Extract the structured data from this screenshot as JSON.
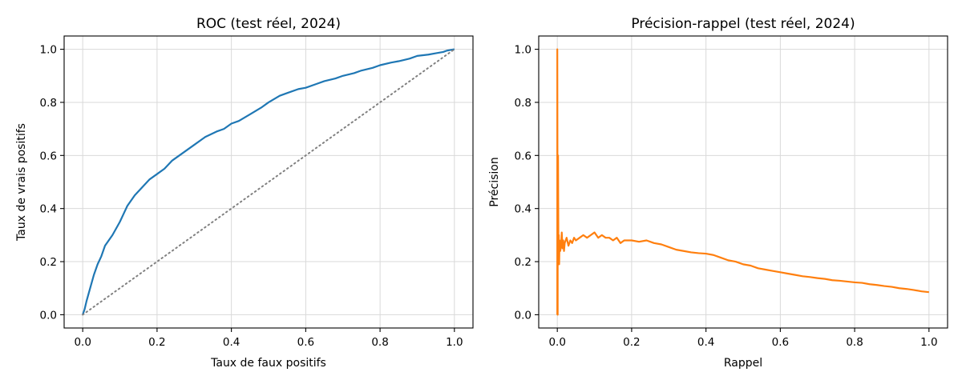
{
  "figure": {
    "background": "#ffffff",
    "grid_color": "#d9d9d9"
  },
  "chart_data": [
    {
      "type": "line",
      "title": "ROC (test réel, 2024)",
      "xlabel": "Taux de faux positifs",
      "ylabel": "Taux de vrais positifs",
      "xlim": [
        -0.05,
        1.05
      ],
      "ylim": [
        -0.05,
        1.05
      ],
      "xticks": [
        0.0,
        0.2,
        0.4,
        0.6,
        0.8,
        1.0
      ],
      "yticks": [
        0.0,
        0.2,
        0.4,
        0.6,
        0.8,
        1.0
      ],
      "xtick_labels": [
        "0.0",
        "0.2",
        "0.4",
        "0.6",
        "0.8",
        "1.0"
      ],
      "ytick_labels": [
        "0.0",
        "0.2",
        "0.4",
        "0.6",
        "0.8",
        "1.0"
      ],
      "grid": true,
      "series": [
        {
          "color": "#1f77b4",
          "style": "solid",
          "x": [
            0.0,
            0.005,
            0.01,
            0.02,
            0.03,
            0.04,
            0.05,
            0.06,
            0.08,
            0.1,
            0.11,
            0.12,
            0.13,
            0.14,
            0.16,
            0.18,
            0.2,
            0.22,
            0.24,
            0.26,
            0.28,
            0.3,
            0.33,
            0.36,
            0.38,
            0.4,
            0.42,
            0.45,
            0.48,
            0.5,
            0.53,
            0.55,
            0.58,
            0.6,
            0.63,
            0.65,
            0.68,
            0.7,
            0.73,
            0.75,
            0.78,
            0.8,
            0.83,
            0.85,
            0.88,
            0.9,
            0.93,
            0.95,
            0.97,
            0.98,
            1.0
          ],
          "y": [
            0.0,
            0.02,
            0.05,
            0.1,
            0.15,
            0.19,
            0.22,
            0.26,
            0.3,
            0.35,
            0.38,
            0.41,
            0.43,
            0.45,
            0.48,
            0.51,
            0.53,
            0.55,
            0.58,
            0.6,
            0.62,
            0.64,
            0.67,
            0.69,
            0.7,
            0.72,
            0.73,
            0.755,
            0.78,
            0.8,
            0.825,
            0.835,
            0.85,
            0.855,
            0.87,
            0.88,
            0.89,
            0.9,
            0.91,
            0.92,
            0.93,
            0.94,
            0.95,
            0.955,
            0.965,
            0.975,
            0.98,
            0.985,
            0.99,
            0.995,
            1.0
          ]
        },
        {
          "color": "#808080",
          "style": "dotted",
          "x": [
            0.0,
            1.0
          ],
          "y": [
            0.0,
            1.0
          ]
        }
      ]
    },
    {
      "type": "line",
      "title": "Précision-rappel (test réel, 2024)",
      "xlabel": "Rappel",
      "ylabel": "Précision",
      "xlim": [
        -0.05,
        1.05
      ],
      "ylim": [
        -0.05,
        1.05
      ],
      "xticks": [
        0.0,
        0.2,
        0.4,
        0.6,
        0.8,
        1.0
      ],
      "yticks": [
        0.0,
        0.2,
        0.4,
        0.6,
        0.8,
        1.0
      ],
      "xtick_labels": [
        "0.0",
        "0.2",
        "0.4",
        "0.6",
        "0.8",
        "1.0"
      ],
      "ytick_labels": [
        "0.0",
        "0.2",
        "0.4",
        "0.6",
        "0.8",
        "1.0"
      ],
      "grid": true,
      "series": [
        {
          "color": "#ff7f0e",
          "style": "solid",
          "x": [
            0.0,
            0.0,
            0.001,
            0.001,
            0.002,
            0.002,
            0.003,
            0.004,
            0.005,
            0.006,
            0.008,
            0.01,
            0.012,
            0.014,
            0.016,
            0.018,
            0.02,
            0.025,
            0.03,
            0.035,
            0.04,
            0.045,
            0.05,
            0.06,
            0.07,
            0.08,
            0.09,
            0.1,
            0.11,
            0.12,
            0.13,
            0.14,
            0.15,
            0.16,
            0.17,
            0.18,
            0.2,
            0.22,
            0.24,
            0.26,
            0.28,
            0.3,
            0.32,
            0.34,
            0.36,
            0.38,
            0.4,
            0.42,
            0.44,
            0.46,
            0.48,
            0.5,
            0.52,
            0.54,
            0.56,
            0.58,
            0.6,
            0.62,
            0.64,
            0.66,
            0.68,
            0.7,
            0.72,
            0.74,
            0.76,
            0.78,
            0.8,
            0.82,
            0.84,
            0.86,
            0.88,
            0.9,
            0.92,
            0.94,
            0.96,
            0.98,
            1.0
          ],
          "y": [
            0.0,
            1.0,
            0.0,
            0.5,
            0.2,
            0.6,
            0.25,
            0.3,
            0.19,
            0.28,
            0.24,
            0.26,
            0.31,
            0.25,
            0.28,
            0.24,
            0.27,
            0.29,
            0.26,
            0.28,
            0.27,
            0.29,
            0.28,
            0.29,
            0.3,
            0.29,
            0.3,
            0.31,
            0.29,
            0.3,
            0.29,
            0.29,
            0.28,
            0.29,
            0.27,
            0.28,
            0.28,
            0.275,
            0.28,
            0.27,
            0.265,
            0.255,
            0.245,
            0.24,
            0.235,
            0.232,
            0.23,
            0.225,
            0.215,
            0.205,
            0.2,
            0.19,
            0.185,
            0.175,
            0.17,
            0.165,
            0.16,
            0.155,
            0.15,
            0.145,
            0.142,
            0.138,
            0.135,
            0.13,
            0.128,
            0.125,
            0.122,
            0.12,
            0.115,
            0.112,
            0.108,
            0.105,
            0.1,
            0.097,
            0.093,
            0.088,
            0.085
          ]
        }
      ]
    }
  ]
}
